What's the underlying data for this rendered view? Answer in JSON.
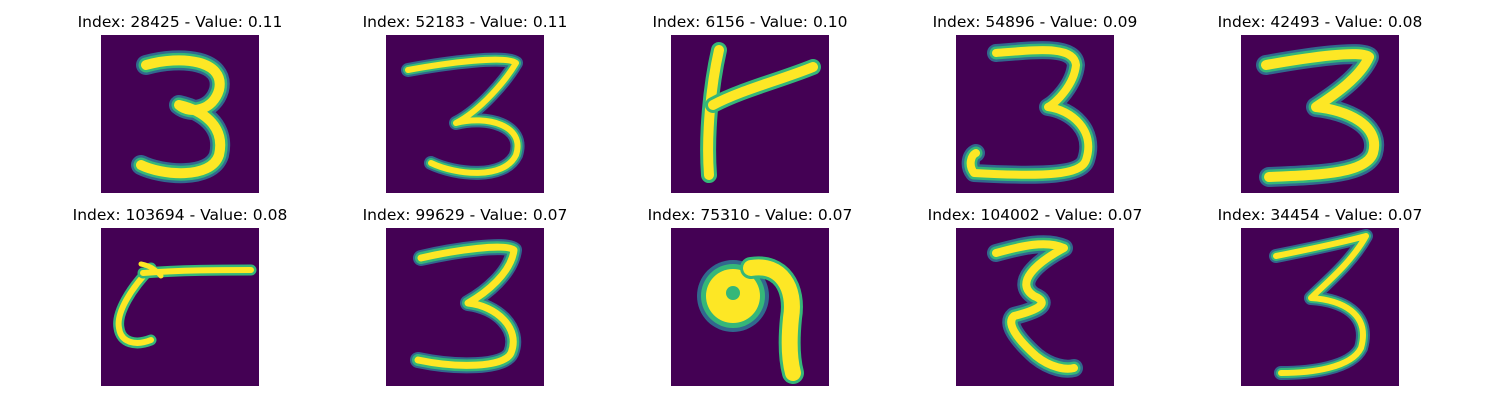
{
  "colors": {
    "background": "#440154",
    "stroke_core": "#fde725",
    "stroke_mid": "#35b779",
    "stroke_edge": "#31688e"
  },
  "panels": [
    {
      "caption": "Index: 28425 - Value: 0.11",
      "glyph": "three-upright"
    },
    {
      "caption": "Index: 52183 - Value: 0.11",
      "glyph": "three-thin"
    },
    {
      "caption": "Index: 6156 - Value: 0.10",
      "glyph": "seven-like-k"
    },
    {
      "caption": "Index: 54896 - Value: 0.09",
      "glyph": "three-wide"
    },
    {
      "caption": "Index: 42493 - Value: 0.08",
      "glyph": "three-bold"
    },
    {
      "caption": "Index: 103694 - Value: 0.08",
      "glyph": "hook-stroke"
    },
    {
      "caption": "Index: 99629 - Value: 0.07",
      "glyph": "three-tall"
    },
    {
      "caption": "Index: 75310 - Value: 0.07",
      "glyph": "loop-nine"
    },
    {
      "caption": "Index: 104002 - Value: 0.07",
      "glyph": "epsilon-three"
    },
    {
      "caption": "Index: 34454 - Value: 0.07",
      "glyph": "three-slanted"
    }
  ]
}
